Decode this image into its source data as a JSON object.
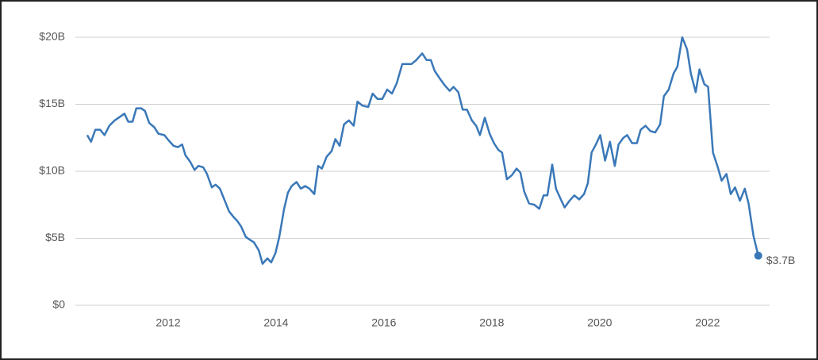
{
  "chart_data": {
    "type": "line",
    "x": [
      2010.5,
      2010.57,
      2010.65,
      2010.74,
      2010.82,
      2010.91,
      2011.01,
      2011.12,
      2011.19,
      2011.26,
      2011.34,
      2011.41,
      2011.5,
      2011.57,
      2011.65,
      2011.74,
      2011.82,
      2011.93,
      2012.01,
      2012.1,
      2012.18,
      2012.26,
      2012.32,
      2012.41,
      2012.49,
      2012.56,
      2012.65,
      2012.72,
      2012.81,
      2012.88,
      2012.96,
      2013.04,
      2013.13,
      2013.21,
      2013.28,
      2013.35,
      2013.44,
      2013.51,
      2013.59,
      2013.68,
      2013.75,
      2013.84,
      2013.91,
      2013.99,
      2014.06,
      2014.15,
      2014.22,
      2014.29,
      2014.38,
      2014.46,
      2014.54,
      2014.62,
      2014.71,
      2014.78,
      2014.85,
      2014.94,
      2015.03,
      2015.1,
      2015.18,
      2015.26,
      2015.35,
      2015.44,
      2015.51,
      2015.6,
      2015.71,
      2015.79,
      2015.88,
      2015.97,
      2016.06,
      2016.15,
      2016.24,
      2016.34,
      2016.43,
      2016.51,
      2016.6,
      2016.71,
      2016.79,
      2016.87,
      2016.94,
      2017.04,
      2017.13,
      2017.22,
      2017.29,
      2017.38,
      2017.46,
      2017.54,
      2017.63,
      2017.71,
      2017.78,
      2017.87,
      2017.96,
      2018.04,
      2018.12,
      2018.19,
      2018.28,
      2018.37,
      2018.46,
      2018.53,
      2018.6,
      2018.69,
      2018.79,
      2018.88,
      2018.96,
      2019.03,
      2019.12,
      2019.19,
      2019.28,
      2019.35,
      2019.44,
      2019.53,
      2019.62,
      2019.71,
      2019.78,
      2019.85,
      2019.93,
      2020.01,
      2020.1,
      2020.19,
      2020.28,
      2020.35,
      2020.44,
      2020.51,
      2020.6,
      2020.69,
      2020.76,
      2020.85,
      2020.94,
      2021.03,
      2021.12,
      2021.19,
      2021.28,
      2021.37,
      2021.44,
      2021.53,
      2021.62,
      2021.69,
      2021.78,
      2021.85,
      2021.94,
      2022.01,
      2022.1,
      2022.19,
      2022.26,
      2022.35,
      2022.43,
      2022.51,
      2022.6,
      2022.69,
      2022.76,
      2022.85,
      2022.94
    ],
    "series": [
      {
        "color": "#3a78b8",
        "values": [
          12.7,
          12.2,
          13.1,
          13.1,
          12.7,
          13.4,
          13.8,
          14.1,
          14.3,
          13.7,
          13.7,
          14.7,
          14.7,
          14.5,
          13.6,
          13.3,
          12.8,
          12.7,
          12.3,
          11.9,
          11.8,
          12.0,
          11.2,
          10.7,
          10.1,
          10.4,
          10.3,
          9.8,
          8.8,
          9.0,
          8.7,
          7.9,
          7.0,
          6.6,
          6.3,
          5.9,
          5.1,
          4.9,
          4.7,
          4.1,
          3.1,
          3.5,
          3.2,
          3.9,
          5.1,
          7.2,
          8.4,
          8.9,
          9.2,
          8.7,
          8.9,
          8.7,
          8.3,
          10.4,
          10.2,
          11.1,
          11.5,
          12.4,
          11.9,
          13.5,
          13.8,
          13.4,
          15.2,
          14.9,
          14.8,
          15.8,
          15.4,
          15.4,
          16.1,
          15.8,
          16.6,
          18.0,
          18.0,
          18.0,
          18.3,
          18.8,
          18.3,
          18.3,
          17.5,
          16.9,
          16.4,
          16.0,
          16.3,
          15.9,
          14.6,
          14.6,
          13.8,
          13.4,
          12.7,
          14.0,
          12.8,
          12.1,
          11.6,
          11.4,
          9.4,
          9.7,
          10.2,
          9.9,
          8.5,
          7.6,
          7.5,
          7.2,
          8.2,
          8.2,
          10.5,
          8.7,
          7.9,
          7.3,
          7.8,
          8.2,
          7.9,
          8.3,
          9.1,
          11.4,
          12.0,
          12.7,
          10.8,
          12.2,
          10.4,
          12.0,
          12.5,
          12.7,
          12.1,
          12.1,
          13.1,
          13.4,
          13.0,
          12.9,
          13.5,
          15.6,
          16.1,
          17.3,
          17.8,
          20.0,
          19.1,
          17.3,
          15.9,
          17.6,
          16.5,
          16.3,
          11.4,
          10.3,
          9.3,
          9.8,
          8.3,
          8.8,
          7.8,
          8.7,
          7.6,
          5.2,
          3.7
        ],
        "value_labels": [
          null,
          null,
          null,
          null,
          null,
          null,
          null,
          null,
          null,
          null,
          null,
          null,
          null,
          null,
          null,
          null,
          null,
          null,
          null,
          null,
          null,
          null,
          null,
          null,
          null,
          null,
          null,
          null,
          null,
          null,
          null,
          null,
          null,
          null,
          null,
          null,
          null,
          null,
          null,
          null,
          null,
          null,
          null,
          null,
          null,
          null,
          null,
          null,
          null,
          null,
          null,
          null,
          null,
          null,
          null,
          null,
          null,
          null,
          null,
          null,
          null,
          null,
          null,
          null,
          null,
          null,
          null,
          null,
          null,
          null,
          null,
          null,
          null,
          null,
          null,
          null,
          null,
          null,
          null,
          null,
          null,
          null,
          null,
          null,
          null,
          null,
          null,
          null,
          null,
          null,
          null,
          null,
          null,
          null,
          null,
          null,
          null,
          null,
          null,
          null,
          null,
          null,
          null,
          null,
          null,
          null,
          null,
          null,
          null,
          null,
          null,
          null,
          null,
          null,
          null,
          null,
          null,
          null,
          null,
          null,
          null,
          null,
          null,
          null,
          null,
          null,
          null,
          null,
          null,
          null,
          null,
          null,
          null,
          null,
          null,
          null,
          null,
          null,
          null,
          null,
          null,
          null,
          null,
          null,
          null,
          null,
          null,
          null,
          null,
          null,
          "$3.7B"
        ]
      }
    ],
    "xlim": [
      2010.28,
      2023.15
    ],
    "xticks": [
      2012,
      2014,
      2016,
      2018,
      2020,
      2022
    ],
    "ylim": [
      0,
      20
    ],
    "yticks": [
      {
        "value": 0,
        "label": "$0"
      },
      {
        "value": 5,
        "label": "$5B"
      },
      {
        "value": 10,
        "label": "$10B"
      },
      {
        "value": 15,
        "label": "$15B"
      },
      {
        "value": 20,
        "label": "$20B"
      }
    ],
    "grid": true
  }
}
